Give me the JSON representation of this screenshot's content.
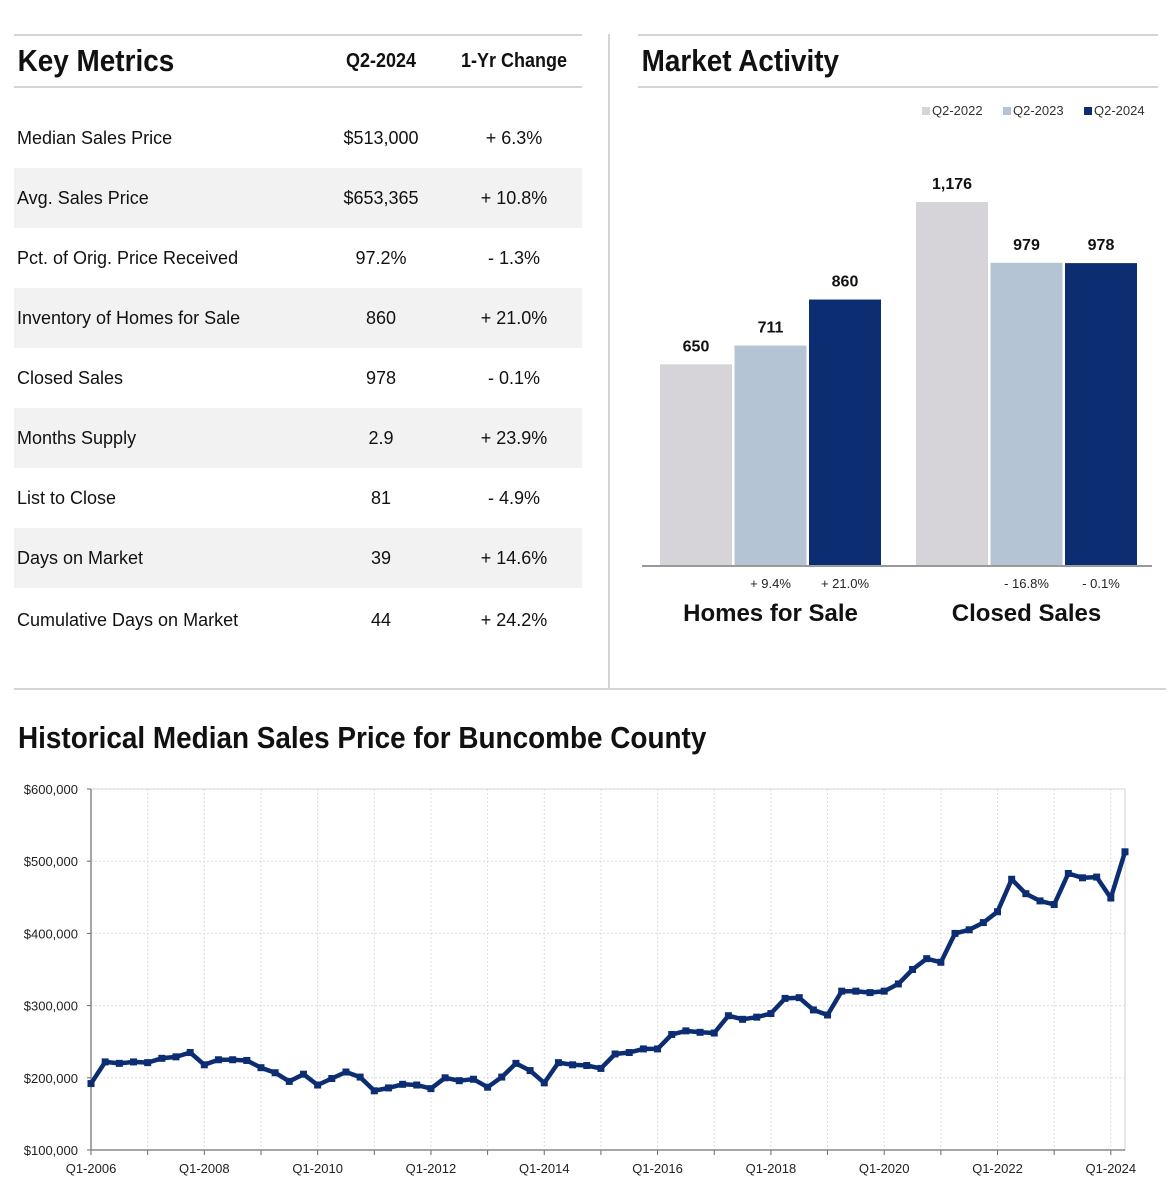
{
  "key_metrics": {
    "title": "Key Metrics",
    "col_period": "Q2-2024",
    "col_change": "1-Yr Change",
    "rows": [
      {
        "label": "Median Sales Price",
        "value": "$513,000",
        "change": "+ 6.3%"
      },
      {
        "label": "Avg. Sales Price",
        "value": "$653,365",
        "change": "+ 10.8%"
      },
      {
        "label": "Pct. of Orig. Price Received",
        "value": "97.2%",
        "change": "- 1.3%"
      },
      {
        "label": "Inventory of Homes for Sale",
        "value": "860",
        "change": "+ 21.0%"
      },
      {
        "label": "Closed Sales",
        "value": "978",
        "change": "- 0.1%"
      },
      {
        "label": "Months Supply",
        "value": "2.9",
        "change": "+ 23.9%"
      },
      {
        "label": "List to Close",
        "value": "81",
        "change": "- 4.9%"
      },
      {
        "label": "Days on Market",
        "value": "39",
        "change": "+ 14.6%"
      },
      {
        "label": "Cumulative Days on Market",
        "value": "44",
        "change": "+ 24.2%"
      }
    ]
  },
  "market_activity": {
    "title": "Market Activity"
  },
  "historical": {
    "title": "Historical Median Sales Price for Buncombe County"
  },
  "colors": {
    "q2_2022": "#d6d3d9",
    "q2_2023": "#b4c4d4",
    "q2_2024": "#0c2d72",
    "line": "#0c2d72",
    "grid": "#dddddd",
    "axis": "#999999"
  },
  "chart_data": [
    {
      "type": "bar",
      "title": "Market Activity",
      "legend": [
        "Q2-2022",
        "Q2-2023",
        "Q2-2024"
      ],
      "legend_position": "top-right",
      "groups": [
        {
          "category": "Homes for Sale",
          "values": [
            650,
            711,
            860
          ],
          "labels": [
            "650",
            "711",
            "860"
          ],
          "changes": [
            "",
            "+ 9.4%",
            "+ 21.0%"
          ]
        },
        {
          "category": "Closed Sales",
          "values": [
            1176,
            979,
            978
          ],
          "labels": [
            "1,176",
            "979",
            "978"
          ],
          "changes": [
            "",
            "- 16.8%",
            "- 0.1%"
          ]
        }
      ]
    },
    {
      "type": "line",
      "title": "Historical Median Sales Price for Buncombe County",
      "ylim": [
        100000,
        600000
      ],
      "y_ticks": [
        "$100,000",
        "$200,000",
        "$300,000",
        "$400,000",
        "$500,000",
        "$600,000"
      ],
      "y_tick_values": [
        100000,
        200000,
        300000,
        400000,
        500000,
        600000
      ],
      "x_tick_labels": [
        "Q1-2006",
        "Q1-2008",
        "Q1-2010",
        "Q1-2012",
        "Q1-2014",
        "Q1-2016",
        "Q1-2018",
        "Q1-2020",
        "Q1-2022",
        "Q1-2024"
      ],
      "x_start": "Q1-2006",
      "x_end": "Q2-2024",
      "grid": true,
      "values": [
        192000,
        222000,
        220000,
        222000,
        221000,
        227000,
        229000,
        235000,
        218000,
        225000,
        225000,
        224000,
        214000,
        207000,
        195000,
        205000,
        190000,
        199000,
        208000,
        201000,
        182000,
        186000,
        191000,
        190000,
        185000,
        200000,
        196000,
        198000,
        187000,
        201000,
        220000,
        210000,
        193000,
        221000,
        218000,
        217000,
        213000,
        233000,
        235000,
        240000,
        240000,
        260000,
        265000,
        263000,
        262000,
        286000,
        281000,
        284000,
        289000,
        310000,
        311000,
        294000,
        287000,
        320000,
        320000,
        318000,
        320000,
        330000,
        350000,
        365000,
        360000,
        400000,
        405000,
        415000,
        430000,
        475000,
        455000,
        445000,
        440000,
        483000,
        477000,
        478000,
        449000,
        513000
      ]
    }
  ]
}
